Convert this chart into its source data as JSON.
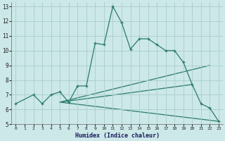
{
  "xlabel": "Humidex (Indice chaleur)",
  "bg_color": "#cce8e8",
  "grid_color": "#aacccc",
  "line_color": "#2a7a6a",
  "xlim": [
    -0.5,
    23.5
  ],
  "ylim": [
    5,
    13.3
  ],
  "xticks": [
    0,
    1,
    2,
    3,
    4,
    5,
    6,
    7,
    8,
    9,
    10,
    11,
    12,
    13,
    14,
    15,
    16,
    17,
    18,
    19,
    20,
    21,
    22,
    23
  ],
  "yticks": [
    5,
    6,
    7,
    8,
    9,
    10,
    11,
    12,
    13
  ],
  "main_line": {
    "x": [
      0,
      2,
      3,
      4,
      5,
      6,
      7,
      8,
      9,
      10,
      11,
      12,
      13,
      14,
      15,
      16,
      17,
      18,
      19,
      20,
      21,
      22,
      23
    ],
    "y": [
      6.4,
      7.0,
      6.4,
      7.0,
      7.2,
      6.5,
      7.6,
      7.6,
      10.5,
      10.4,
      13.0,
      11.9,
      10.1,
      10.8,
      10.8,
      10.4,
      10.0,
      10.0,
      9.2,
      7.7,
      6.4,
      6.1,
      5.2
    ]
  },
  "straight_lines": [
    {
      "x": [
        5,
        22
      ],
      "y": [
        6.5,
        9.0
      ]
    },
    {
      "x": [
        5,
        20
      ],
      "y": [
        6.5,
        7.7
      ]
    },
    {
      "x": [
        5,
        23
      ],
      "y": [
        6.5,
        5.2
      ]
    }
  ]
}
